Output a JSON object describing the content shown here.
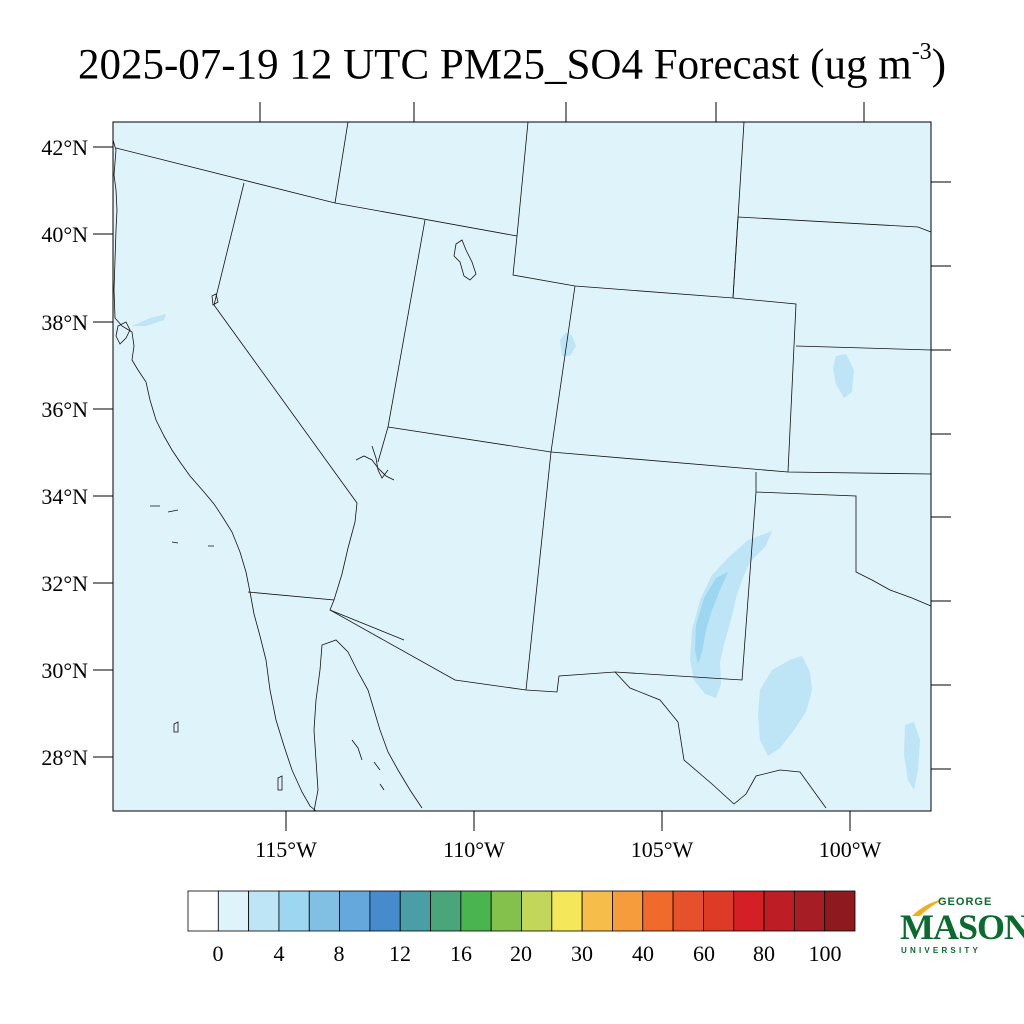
{
  "title": {
    "text": "2025-07-19 12 UTC PM25_SO4 Forecast (ug m",
    "exponent": "-3",
    "close": ")"
  },
  "map": {
    "region": "Southwestern United States and northern Mexico",
    "lat_labels": [
      "42°N",
      "40°N",
      "38°N",
      "36°N",
      "34°N",
      "32°N",
      "30°N",
      "28°N"
    ],
    "lon_labels": [
      "115°W",
      "110°W",
      "105°W",
      "100°W"
    ],
    "background_color": "#dff3fb",
    "features": [
      {
        "name": "sulfate plume west Texas / southern New Mexico",
        "level": "2-4 ug m-3",
        "color": "#bde5f5"
      },
      {
        "name": "core of west Texas plume",
        "level": "4-6 ug m-3",
        "color": "#9dd6f0"
      },
      {
        "name": "patch near Texas-Mexico border",
        "level": "2-4 ug m-3",
        "color": "#bde5f5"
      },
      {
        "name": "small patch southern Colorado / New Mexico",
        "level": "2-4 ug m-3",
        "color": "#bde5f5"
      }
    ]
  },
  "colorbar": {
    "colors": [
      "#ffffff",
      "#dff3fb",
      "#bde5f5",
      "#9dd6f0",
      "#81bfe3",
      "#65a8dc",
      "#468bcb",
      "#4a9ea5",
      "#4aa57a",
      "#4ab54e",
      "#84c14c",
      "#c2d65a",
      "#f5e75a",
      "#f7bd4b",
      "#f59c3d",
      "#f06a2c",
      "#e6512b",
      "#dd3b27",
      "#d51f26",
      "#bd1e26",
      "#a61d25",
      "#8e1a1d"
    ],
    "tick_labels": [
      "0",
      "4",
      "8",
      "12",
      "16",
      "20",
      "30",
      "40",
      "60",
      "80",
      "100"
    ]
  },
  "logo": {
    "line1": "GEORGE",
    "line2": "MASON",
    "line3": "UNIVERSITY",
    "color": "#0a6b2e"
  }
}
